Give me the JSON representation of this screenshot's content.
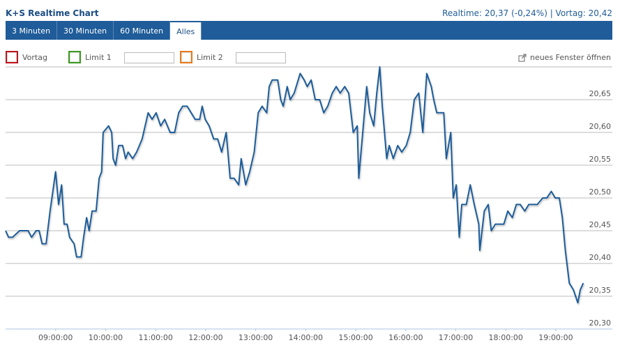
{
  "header": {
    "title": "K+S Realtime Chart",
    "quote": "Realtime: 20,37 (-0,24%) | Vortag: 20,42"
  },
  "tabs": [
    "3 Minuten",
    "30 Minuten",
    "60 Minuten",
    "Alles"
  ],
  "active_tab": 3,
  "controls": {
    "checkboxes": [
      {
        "label": "Vortag",
        "color": "#c0141b"
      },
      {
        "label": "Limit 1",
        "color": "#3a9a1e"
      },
      {
        "label": "Limit 2",
        "color": "#e87a1c"
      }
    ],
    "new_window": "neues Fenster öffnen"
  },
  "chart_data": {
    "type": "line",
    "color": "#1f5c99",
    "grid": true,
    "x": [
      8.0,
      8.06,
      8.14,
      8.28,
      8.45,
      8.52,
      8.61,
      8.67,
      8.73,
      8.81,
      8.89,
      9.0,
      9.06,
      9.12,
      9.17,
      9.23,
      9.28,
      9.37,
      9.42,
      9.51,
      9.56,
      9.62,
      9.67,
      9.73,
      9.81,
      9.87,
      9.92,
      9.95,
      10.06,
      10.12,
      10.15,
      10.2,
      10.26,
      10.34,
      10.4,
      10.45,
      10.54,
      10.62,
      10.73,
      10.85,
      10.93,
      11.01,
      11.1,
      11.18,
      11.29,
      11.38,
      11.46,
      11.54,
      11.63,
      11.71,
      11.79,
      11.88,
      11.93,
      11.99,
      12.07,
      12.16,
      12.24,
      12.32,
      12.41,
      12.49,
      12.57,
      12.66,
      12.71,
      12.8,
      12.88,
      12.97,
      13.05,
      13.13,
      13.22,
      13.27,
      13.33,
      13.44,
      13.5,
      13.55,
      13.63,
      13.69,
      13.77,
      13.89,
      13.97,
      14.03,
      14.11,
      14.19,
      14.28,
      14.36,
      14.44,
      14.53,
      14.61,
      14.69,
      14.78,
      14.86,
      14.95,
      15.03,
      15.06,
      15.14,
      15.22,
      15.28,
      15.36,
      15.42,
      15.48,
      15.53,
      15.62,
      15.67,
      15.75,
      15.84,
      15.92,
      16.01,
      16.09,
      16.17,
      16.26,
      16.34,
      16.42,
      16.51,
      16.56,
      16.62,
      16.76,
      16.81,
      16.9,
      16.95,
      17.01,
      17.07,
      17.12,
      17.21,
      17.29,
      17.37,
      17.46,
      17.48,
      17.57,
      17.65,
      17.71,
      17.79,
      17.87,
      17.96,
      18.04,
      18.13,
      18.21,
      18.29,
      18.38,
      18.46,
      18.54,
      18.63,
      18.74,
      18.82,
      18.91,
      18.99,
      19.07,
      19.13,
      19.19,
      19.27,
      19.35,
      19.44,
      19.49,
      19.55
    ],
    "values": [
      20.45,
      20.44,
      20.44,
      20.45,
      20.45,
      20.44,
      20.45,
      20.45,
      20.43,
      20.43,
      20.48,
      20.54,
      20.49,
      20.52,
      20.46,
      20.46,
      20.44,
      20.43,
      20.41,
      20.41,
      20.44,
      20.47,
      20.45,
      20.48,
      20.48,
      20.53,
      20.54,
      20.6,
      20.61,
      20.6,
      20.56,
      20.55,
      20.58,
      20.58,
      20.56,
      20.57,
      20.56,
      20.57,
      20.59,
      20.63,
      20.62,
      20.63,
      20.61,
      20.62,
      20.6,
      20.6,
      20.63,
      20.64,
      20.64,
      20.63,
      20.62,
      20.62,
      20.64,
      20.62,
      20.61,
      20.59,
      20.59,
      20.57,
      20.6,
      20.53,
      20.53,
      20.52,
      20.56,
      20.52,
      20.54,
      20.57,
      20.63,
      20.64,
      20.63,
      20.67,
      20.68,
      20.68,
      20.65,
      20.64,
      20.67,
      20.65,
      20.66,
      20.69,
      20.68,
      20.67,
      20.68,
      20.65,
      20.65,
      20.63,
      20.64,
      20.66,
      20.67,
      20.66,
      20.67,
      20.66,
      20.6,
      20.61,
      20.53,
      20.6,
      20.67,
      20.63,
      20.61,
      20.66,
      20.7,
      20.64,
      20.56,
      20.58,
      20.56,
      20.58,
      20.57,
      20.58,
      20.6,
      20.65,
      20.66,
      20.6,
      20.69,
      20.67,
      20.65,
      20.63,
      20.63,
      20.56,
      20.6,
      20.5,
      20.52,
      20.44,
      20.49,
      20.49,
      20.52,
      20.49,
      20.46,
      20.42,
      20.48,
      20.49,
      20.45,
      20.46,
      20.46,
      20.46,
      20.48,
      20.47,
      20.49,
      20.49,
      20.48,
      20.49,
      20.49,
      20.49,
      20.5,
      20.5,
      20.51,
      20.5,
      20.5,
      20.47,
      20.42,
      20.37,
      20.36,
      20.34,
      20.36,
      20.37
    ],
    "xlim": [
      8.0,
      20.13
    ],
    "ylim": [
      20.3,
      20.7
    ],
    "xticks": [
      {
        "value": 9,
        "label": "09:00:00"
      },
      {
        "value": 10,
        "label": "10:00:00"
      },
      {
        "value": 11,
        "label": "11:00:00"
      },
      {
        "value": 12,
        "label": "12:00:00"
      },
      {
        "value": 13,
        "label": "13:00:00"
      },
      {
        "value": 14,
        "label": "14:00:00"
      },
      {
        "value": 15,
        "label": "15:00:00"
      },
      {
        "value": 16,
        "label": "16:00:00"
      },
      {
        "value": 17,
        "label": "17:00:00"
      },
      {
        "value": 18,
        "label": "18:00:00"
      },
      {
        "value": 19,
        "label": "19:00:00"
      }
    ],
    "yticks": [
      {
        "value": 20.3,
        "label": "20,30"
      },
      {
        "value": 20.35,
        "label": "20,35"
      },
      {
        "value": 20.4,
        "label": "20,40"
      },
      {
        "value": 20.45,
        "label": "20,45"
      },
      {
        "value": 20.5,
        "label": "20,50"
      },
      {
        "value": 20.55,
        "label": "20,55"
      },
      {
        "value": 20.6,
        "label": "20,60"
      },
      {
        "value": 20.65,
        "label": "20,65"
      }
    ]
  }
}
